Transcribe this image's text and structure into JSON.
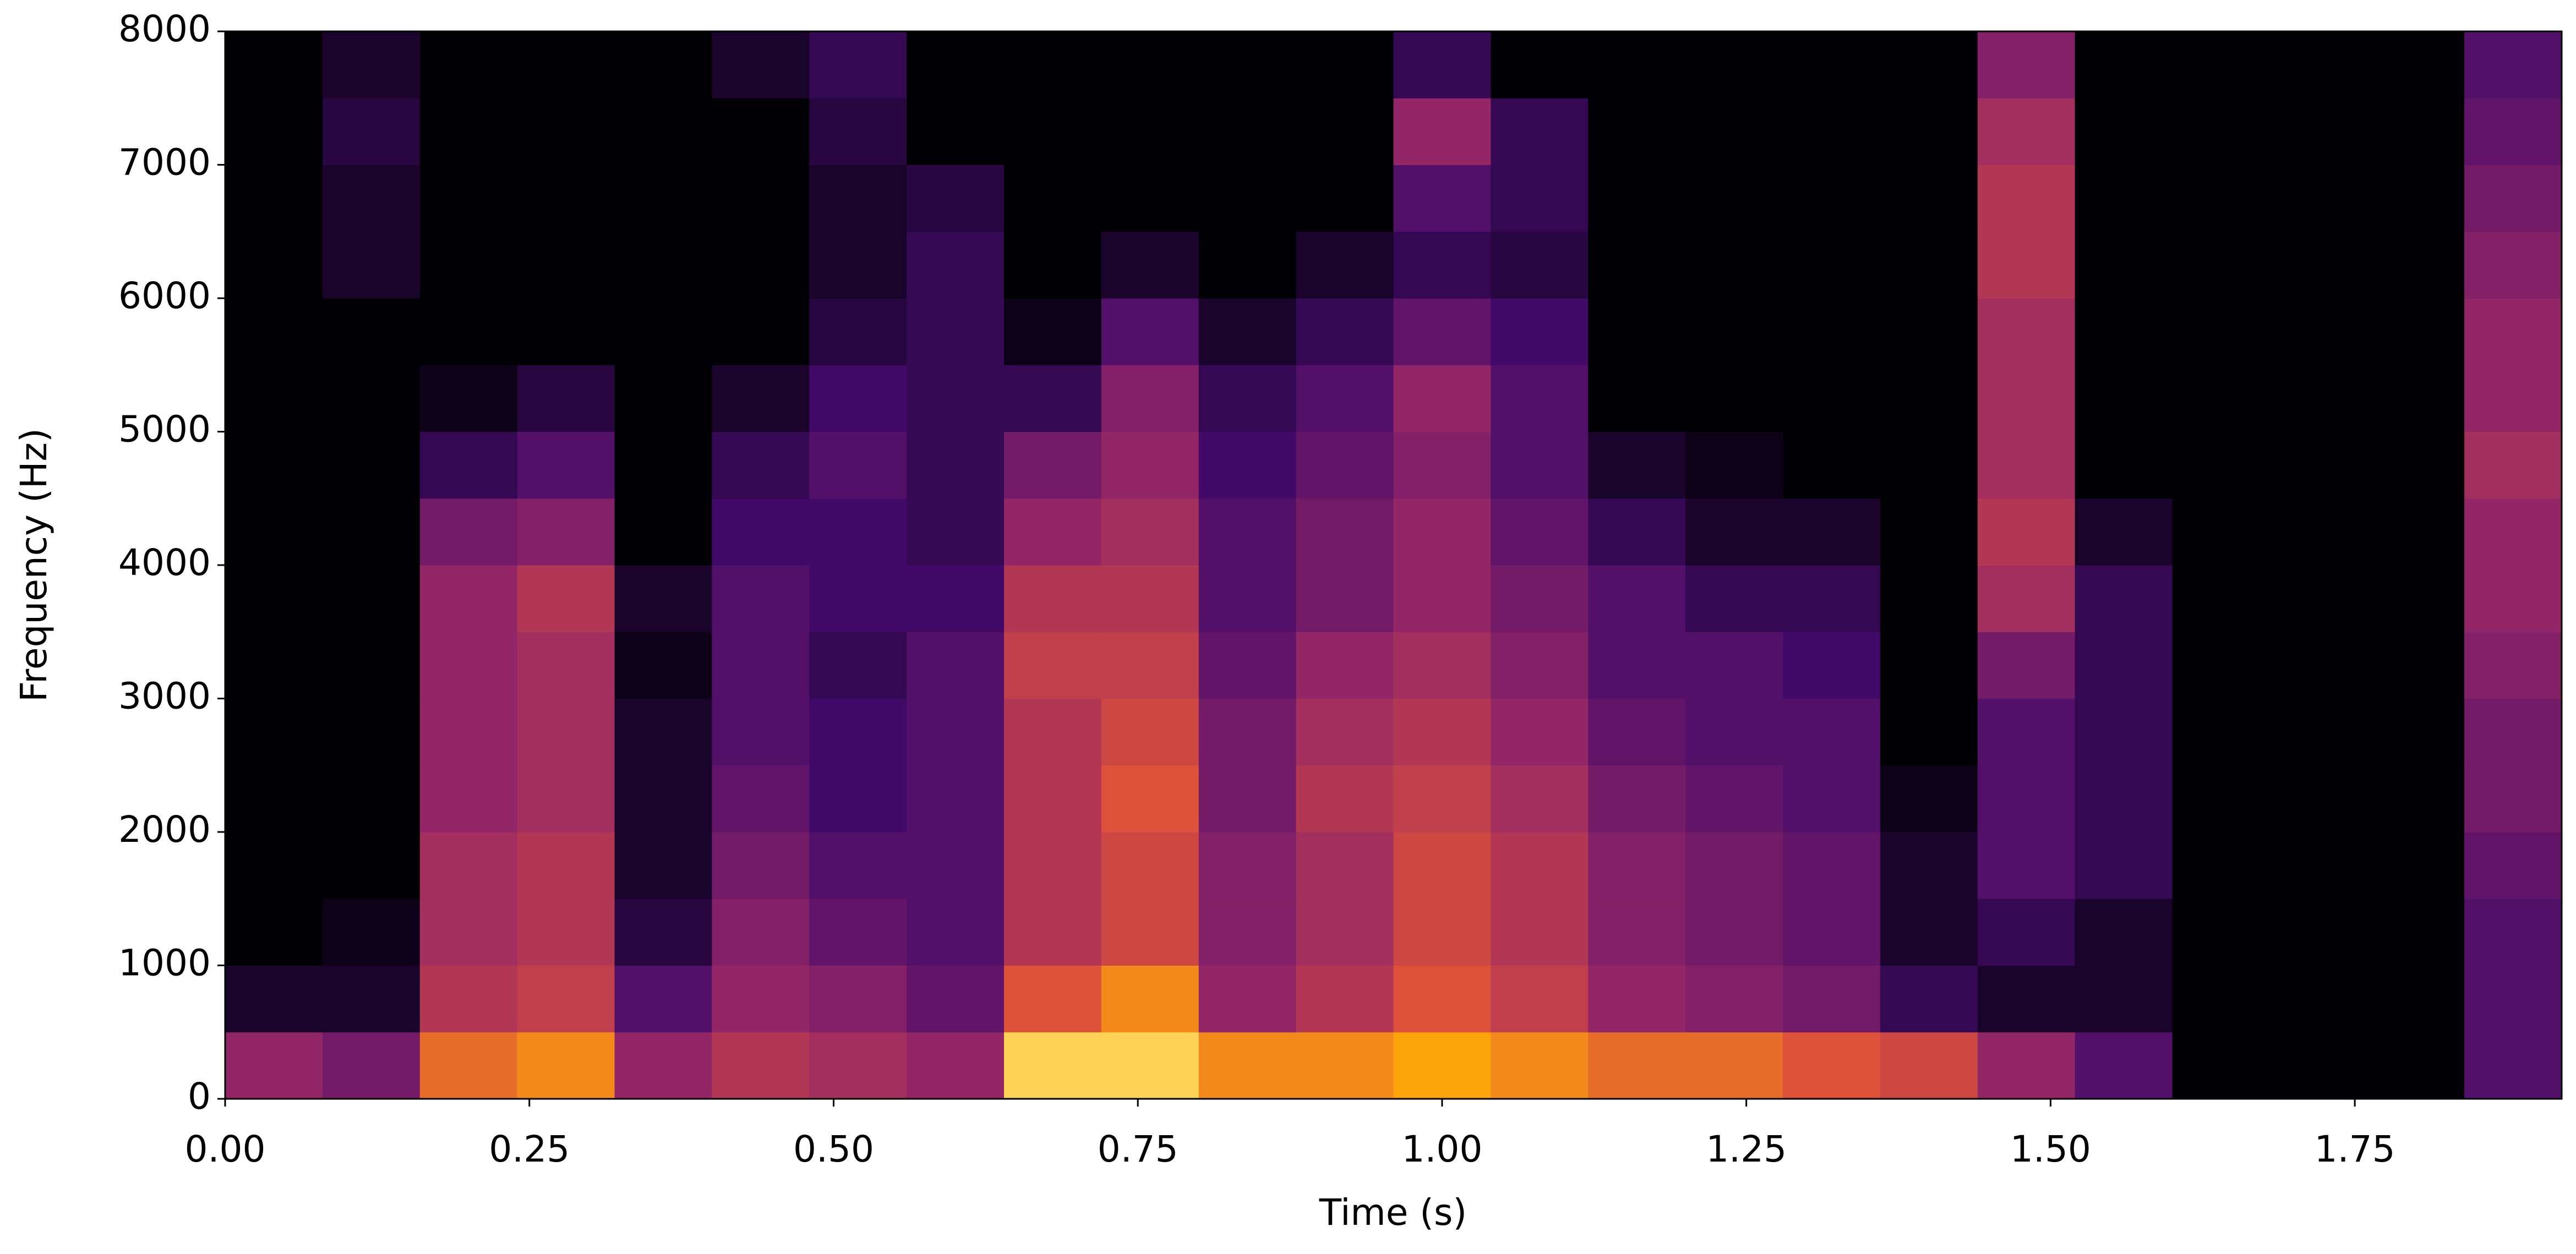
{
  "chart_data": {
    "type": "heatmap",
    "xlabel": "Time (s)",
    "ylabel": "Frequency (Hz)",
    "colormap": "inferno",
    "x": [
      0,
      0.08,
      0.16,
      0.24,
      0.32,
      0.4,
      0.48,
      0.56,
      0.64,
      0.72,
      0.8,
      0.88,
      0.96,
      1.04,
      1.12,
      1.2,
      1.28,
      1.36,
      1.44,
      1.52,
      1.6,
      1.68,
      1.76,
      1.84,
      1.92
    ],
    "y": [
      0,
      500,
      1000,
      1500,
      2000,
      2500,
      3000,
      3500,
      4000,
      4500,
      5000,
      5500,
      6000,
      6500,
      7000,
      7500,
      8000
    ],
    "z": [
      [
        0.5,
        0.1,
        0,
        0,
        0,
        0,
        0,
        0,
        0,
        0,
        0,
        0,
        0,
        0,
        0,
        0
      ],
      [
        0.4,
        0.1,
        0.05,
        0,
        0,
        0,
        0,
        0,
        0,
        0,
        0,
        0,
        0.1,
        0.1,
        0.15,
        0.1
      ],
      [
        0.8,
        0.6,
        0.55,
        0.55,
        0.5,
        0.5,
        0.5,
        0.5,
        0.4,
        0.2,
        0.05,
        0,
        0,
        0,
        0,
        0
      ],
      [
        0.85,
        0.65,
        0.6,
        0.6,
        0.55,
        0.55,
        0.55,
        0.6,
        0.45,
        0.3,
        0.15,
        0,
        0,
        0,
        0,
        0
      ],
      [
        0.5,
        0.3,
        0.15,
        0.1,
        0.1,
        0.1,
        0.05,
        0.1,
        0,
        0,
        0,
        0,
        0,
        0,
        0,
        0
      ],
      [
        0.6,
        0.5,
        0.45,
        0.4,
        0.35,
        0.3,
        0.3,
        0.3,
        0.25,
        0.2,
        0.1,
        0,
        0,
        0,
        0,
        0.1
      ],
      [
        0.55,
        0.45,
        0.35,
        0.3,
        0.25,
        0.25,
        0.2,
        0.25,
        0.25,
        0.3,
        0.25,
        0.15,
        0.1,
        0.1,
        0.15,
        0.2
      ],
      [
        0.5,
        0.35,
        0.3,
        0.3,
        0.3,
        0.3,
        0.3,
        0.25,
        0.2,
        0.2,
        0.2,
        0.2,
        0.2,
        0.15,
        0,
        0
      ],
      [
        0.95,
        0.75,
        0.6,
        0.6,
        0.6,
        0.6,
        0.65,
        0.6,
        0.5,
        0.4,
        0.2,
        0.05,
        0,
        0,
        0,
        0
      ],
      [
        0.95,
        0.85,
        0.7,
        0.7,
        0.75,
        0.7,
        0.65,
        0.6,
        0.55,
        0.5,
        0.45,
        0.3,
        0.1,
        0,
        0,
        0
      ],
      [
        0.85,
        0.5,
        0.45,
        0.45,
        0.4,
        0.4,
        0.35,
        0.3,
        0.3,
        0.25,
        0.2,
        0.1,
        0,
        0,
        0,
        0
      ],
      [
        0.85,
        0.6,
        0.55,
        0.55,
        0.6,
        0.55,
        0.5,
        0.4,
        0.4,
        0.35,
        0.3,
        0.2,
        0.1,
        0,
        0,
        0
      ],
      [
        0.9,
        0.75,
        0.7,
        0.7,
        0.65,
        0.6,
        0.55,
        0.5,
        0.5,
        0.45,
        0.5,
        0.35,
        0.2,
        0.3,
        0.5,
        0.2
      ],
      [
        0.85,
        0.65,
        0.6,
        0.6,
        0.55,
        0.5,
        0.45,
        0.4,
        0.35,
        0.3,
        0.3,
        0.25,
        0.15,
        0.2,
        0.2,
        0
      ],
      [
        0.8,
        0.5,
        0.45,
        0.45,
        0.4,
        0.35,
        0.3,
        0.3,
        0.2,
        0.1,
        0,
        0,
        0,
        0,
        0,
        0
      ],
      [
        0.8,
        0.45,
        0.4,
        0.4,
        0.35,
        0.3,
        0.3,
        0.2,
        0.1,
        0.05,
        0,
        0,
        0,
        0,
        0,
        0
      ],
      [
        0.75,
        0.4,
        0.35,
        0.35,
        0.3,
        0.3,
        0.25,
        0.2,
        0.1,
        0,
        0,
        0,
        0,
        0,
        0,
        0
      ],
      [
        0.7,
        0.2,
        0.1,
        0.1,
        0.05,
        0,
        0,
        0,
        0,
        0,
        0,
        0,
        0,
        0,
        0,
        0
      ],
      [
        0.5,
        0.1,
        0.2,
        0.3,
        0.3,
        0.3,
        0.4,
        0.55,
        0.6,
        0.55,
        0.55,
        0.55,
        0.6,
        0.6,
        0.55,
        0.45
      ],
      [
        0.3,
        0.1,
        0.1,
        0.2,
        0.2,
        0.2,
        0.2,
        0.2,
        0.1,
        0,
        0,
        0,
        0,
        0,
        0,
        0
      ],
      [
        0,
        0,
        0,
        0,
        0,
        0,
        0,
        0,
        0,
        0,
        0,
        0,
        0,
        0,
        0,
        0
      ],
      [
        0,
        0,
        0,
        0,
        0,
        0,
        0,
        0,
        0,
        0,
        0,
        0,
        0,
        0,
        0,
        0
      ],
      [
        0,
        0,
        0,
        0,
        0,
        0,
        0,
        0,
        0,
        0,
        0,
        0,
        0,
        0,
        0,
        0
      ],
      [
        0.3,
        0.3,
        0.3,
        0.35,
        0.4,
        0.4,
        0.45,
        0.5,
        0.5,
        0.55,
        0.5,
        0.5,
        0.45,
        0.4,
        0.35,
        0.3
      ]
    ],
    "xlim": [
      0,
      1.92
    ],
    "ylim": [
      0,
      8000
    ],
    "xticks": [
      {
        "value": 0,
        "label": "0.00"
      },
      {
        "value": 0.25,
        "label": "0.25"
      },
      {
        "value": 0.5,
        "label": "0.50"
      },
      {
        "value": 0.75,
        "label": "0.75"
      },
      {
        "value": 1,
        "label": "1.00"
      },
      {
        "value": 1.25,
        "label": "1.25"
      },
      {
        "value": 1.5,
        "label": "1.50"
      },
      {
        "value": 1.75,
        "label": "1.75"
      }
    ],
    "yticks": [
      0,
      1000,
      2000,
      3000,
      4000,
      5000,
      6000,
      7000,
      8000
    ]
  }
}
